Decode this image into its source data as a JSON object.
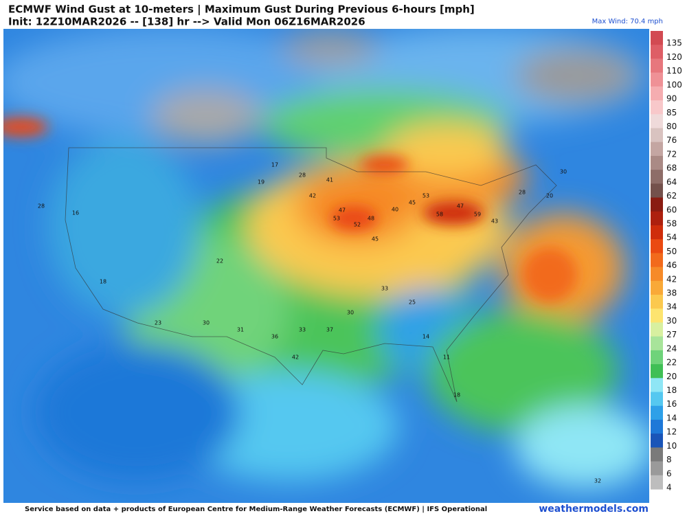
{
  "header": {
    "title": "ECMWF Wind Gust at 10-meters | Maximum Gust During Previous 6-hours [mph]",
    "subtitle": "Init: 12Z10MAR2026 -- [138] hr --> Valid Mon 06Z16MAR2026",
    "max_wind": "Max Wind: 70.4 mph"
  },
  "colorbar": {
    "levels": [
      135,
      120,
      110,
      100,
      90,
      85,
      80,
      76,
      72,
      68,
      64,
      62,
      60,
      58,
      54,
      50,
      46,
      42,
      38,
      34,
      30,
      27,
      24,
      22,
      20,
      18,
      16,
      14,
      12,
      10,
      8,
      6,
      4
    ],
    "colors": [
      "#d24a52",
      "#de5e66",
      "#e7777d",
      "#ef9196",
      "#f5adb0",
      "#f8c8ca",
      "#efdada",
      "#d9c3c0",
      "#c4a6a2",
      "#aa8a85",
      "#8e6d68",
      "#74514c",
      "#8a1c12",
      "#ad200e",
      "#cf2d0b",
      "#ea4a12",
      "#f26a1c",
      "#f68a28",
      "#f9a938",
      "#fbc94f",
      "#fde46f",
      "#d8f0a0",
      "#a8e49a",
      "#6fd37a",
      "#3fbf55",
      "#8fe6f5",
      "#55c8f0",
      "#2ea0e8",
      "#1e78d8",
      "#1a55b8",
      "#7a7a7a",
      "#9a9a9a",
      "#bdbdbd"
    ]
  },
  "stations": [
    "53",
    "47",
    "52",
    "48",
    "45",
    "40",
    "45",
    "53",
    "58",
    "47",
    "59",
    "43",
    "42",
    "41",
    "28",
    "17",
    "19",
    "22",
    "30",
    "31",
    "36",
    "33",
    "37",
    "30",
    "33",
    "25",
    "14",
    "11",
    "18",
    "23",
    "18",
    "16",
    "28",
    "42",
    "28",
    "20",
    "30",
    "32"
  ],
  "footer": {
    "credit": "Service based on data + products of European Centre for Medium-Range Weather Forecasts (ECMWF) | IFS Operational",
    "site": "weathermodels.com"
  }
}
